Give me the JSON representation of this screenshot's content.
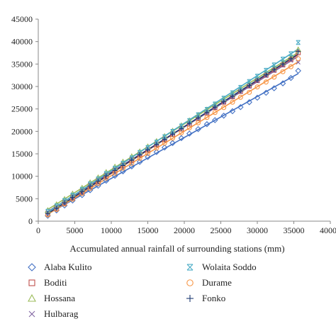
{
  "chart_data": {
    "type": "scatter",
    "xlabel": "Accumulated annual rainfall of surrounding stations (mm)",
    "ylabel": "",
    "xlim": [
      0,
      40000
    ],
    "ylim": [
      0,
      45000
    ],
    "xticks": [
      0,
      5000,
      10000,
      15000,
      20000,
      25000,
      30000,
      35000,
      40000
    ],
    "yticks": [
      0,
      5000,
      10000,
      15000,
      20000,
      25000,
      30000,
      35000,
      40000,
      45000
    ],
    "grid": false,
    "legend_position": "bottom",
    "trendlines": true,
    "series": [
      {
        "name": "Alaba Kulito",
        "marker": "diamond",
        "color": "#4472C4",
        "x": [
          1300,
          2500,
          3600,
          4700,
          6000,
          7100,
          8200,
          9300,
          10500,
          11600,
          12800,
          13900,
          15000,
          16200,
          17300,
          18400,
          19600,
          20700,
          21900,
          23100,
          24200,
          25400,
          26600,
          27700,
          28900,
          30000,
          31200,
          32300,
          33500,
          34600,
          35600
        ],
        "y": [
          1200,
          2400,
          3500,
          4600,
          5800,
          6900,
          7900,
          9000,
          10100,
          11100,
          12200,
          13200,
          14300,
          15400,
          16400,
          17400,
          18500,
          19500,
          20500,
          21600,
          22500,
          23500,
          24500,
          25400,
          26500,
          27500,
          28600,
          29600,
          30700,
          31900,
          33500
        ]
      },
      {
        "name": "Boditi",
        "marker": "square",
        "color": "#C0504D",
        "x": [
          1300,
          2500,
          3600,
          4700,
          6000,
          7100,
          8200,
          9300,
          10500,
          11600,
          12800,
          13900,
          15000,
          16200,
          17300,
          18400,
          19600,
          20700,
          21900,
          23100,
          24200,
          25400,
          26600,
          27700,
          28900,
          30000,
          31200,
          32300,
          33500,
          34600,
          35600
        ],
        "y": [
          1600,
          2800,
          4000,
          5200,
          6500,
          7700,
          8800,
          10000,
          11200,
          12300,
          13500,
          14700,
          15800,
          17000,
          18100,
          19300,
          20500,
          21600,
          22900,
          24100,
          25300,
          26500,
          27700,
          28900,
          30100,
          31300,
          32500,
          33600,
          34800,
          36000,
          37500
        ]
      },
      {
        "name": "Hossana",
        "marker": "triangle",
        "color": "#9BBB59",
        "x": [
          1300,
          2500,
          3600,
          4700,
          6000,
          7100,
          8200,
          9300,
          10500,
          11600,
          12800,
          13900,
          15000,
          16200,
          17300,
          18400,
          19600,
          20700,
          21900,
          23100,
          24200,
          25400,
          26600,
          27700,
          28900,
          30000,
          31200,
          32300,
          33500,
          34600,
          35600
        ],
        "y": [
          2400,
          3700,
          4900,
          6100,
          7400,
          8600,
          9700,
          10900,
          12100,
          13200,
          14400,
          15500,
          16600,
          17800,
          18900,
          20100,
          21300,
          22400,
          23600,
          24800,
          25900,
          27100,
          28300,
          29400,
          30600,
          31800,
          33000,
          34100,
          35300,
          36500,
          38200
        ]
      },
      {
        "name": "Hulbarag",
        "marker": "x",
        "color": "#8064A2",
        "x": [
          1300,
          2500,
          3600,
          4700,
          6000,
          7100,
          8200,
          9300,
          10500,
          11600,
          12800,
          13900,
          15000,
          16200,
          17300,
          18400,
          19600,
          20700,
          21900,
          23100,
          24200,
          25400,
          26600,
          27700,
          28900,
          30000,
          31200,
          32300,
          33500,
          34600,
          35600
        ],
        "y": [
          1900,
          3100,
          4300,
          5500,
          6800,
          8000,
          9100,
          10300,
          11500,
          12600,
          13800,
          14900,
          16000,
          17200,
          18300,
          19500,
          20700,
          21800,
          23000,
          24200,
          25300,
          26500,
          27700,
          28800,
          30000,
          31200,
          32400,
          33500,
          34700,
          35800,
          35400
        ]
      },
      {
        "name": "Wolaita Soddo",
        "marker": "asterisk",
        "color": "#4BACC6",
        "x": [
          1300,
          2500,
          3600,
          4700,
          6000,
          7100,
          8200,
          9300,
          10500,
          11600,
          12800,
          13900,
          15000,
          16200,
          17300,
          18400,
          19600,
          20700,
          21900,
          23100,
          24200,
          25400,
          26600,
          27700,
          28900,
          30000,
          31200,
          32300,
          33500,
          34600,
          35600
        ],
        "y": [
          2200,
          3400,
          4600,
          5800,
          7100,
          8300,
          9400,
          10600,
          11800,
          12900,
          14100,
          15300,
          16400,
          17600,
          18800,
          20000,
          21200,
          22400,
          23700,
          24900,
          26100,
          27400,
          28600,
          29800,
          31100,
          32300,
          33600,
          34800,
          36100,
          37300,
          39800
        ]
      },
      {
        "name": "Durame",
        "marker": "circle",
        "color": "#F79646",
        "x": [
          1300,
          2500,
          3600,
          4700,
          6000,
          7100,
          8200,
          9300,
          10500,
          11600,
          12800,
          13900,
          15000,
          16200,
          17300,
          18400,
          19600,
          20700,
          21900,
          23100,
          24200,
          25400,
          26600,
          27700,
          28900,
          30000,
          31200,
          32300,
          33500,
          34600,
          35600
        ],
        "y": [
          1400,
          2600,
          3800,
          4900,
          6200,
          7300,
          8400,
          9600,
          10700,
          11800,
          12900,
          14000,
          15100,
          16300,
          17400,
          18500,
          19700,
          20800,
          21900,
          23100,
          24200,
          25300,
          26500,
          27600,
          28700,
          29900,
          31000,
          32100,
          33300,
          34400,
          36200
        ]
      },
      {
        "name": "Fonko",
        "marker": "plus",
        "color": "#1F3B73",
        "x": [
          1300,
          2500,
          3600,
          4700,
          6000,
          7100,
          8200,
          9300,
          10500,
          11600,
          12800,
          13900,
          15000,
          16200,
          17300,
          18400,
          19600,
          20700,
          21900,
          23100,
          24200,
          25400,
          26600,
          27700,
          28900,
          30000,
          31200,
          32300,
          33500,
          34600,
          35600
        ],
        "y": [
          1700,
          2900,
          4100,
          5300,
          6600,
          7800,
          8900,
          10100,
          11300,
          12400,
          13600,
          14800,
          15900,
          17100,
          18200,
          19400,
          20600,
          21800,
          23000,
          24200,
          25400,
          26600,
          27800,
          29000,
          30200,
          31400,
          32600,
          33800,
          35000,
          36200,
          37800
        ]
      }
    ]
  }
}
